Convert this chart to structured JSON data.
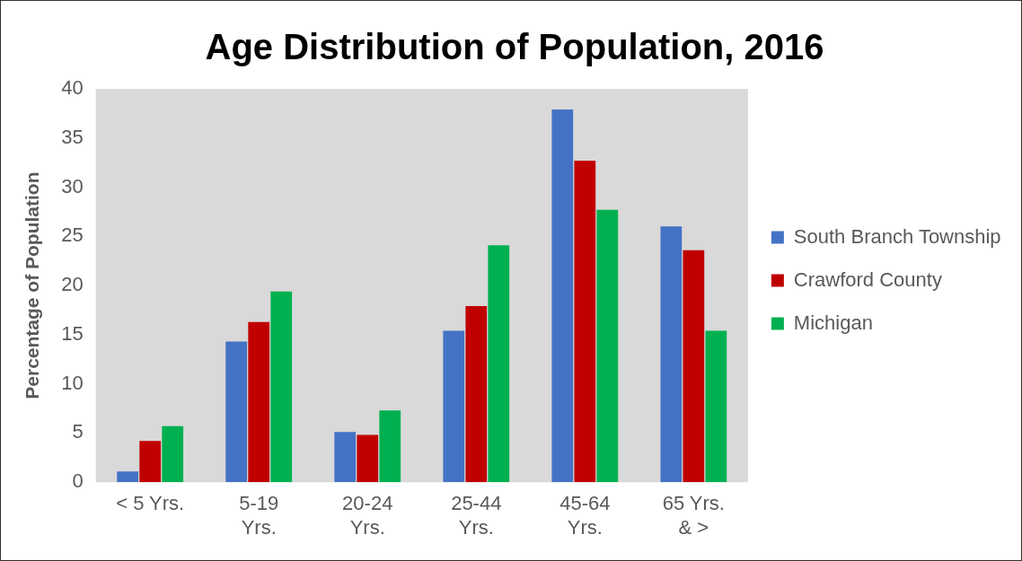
{
  "chart_data": {
    "type": "bar",
    "title": "Age Distribution of Population, 2016",
    "ylabel": "Percentage of Population",
    "categories": [
      "< 5 Yrs.",
      "5-19 Yrs.",
      "20-24 Yrs.",
      "25-44 Yrs.",
      "45-64 Yrs.",
      "65 Yrs. & >"
    ],
    "series": [
      {
        "name": "South Branch Township",
        "color": "#4472c4",
        "values": [
          1.1,
          14.3,
          5.1,
          15.4,
          37.9,
          26.0
        ]
      },
      {
        "name": "Crawford County",
        "color": "#c00000",
        "values": [
          4.2,
          16.3,
          4.8,
          17.9,
          32.7,
          23.6
        ]
      },
      {
        "name": "Michigan",
        "color": "#00b050",
        "values": [
          5.7,
          19.4,
          7.3,
          24.1,
          27.7,
          15.4
        ]
      }
    ],
    "ylim": [
      0,
      40
    ],
    "yticks": [
      0,
      5,
      10,
      15,
      20,
      25,
      30,
      35,
      40
    ],
    "grid": false,
    "legend": "right"
  }
}
